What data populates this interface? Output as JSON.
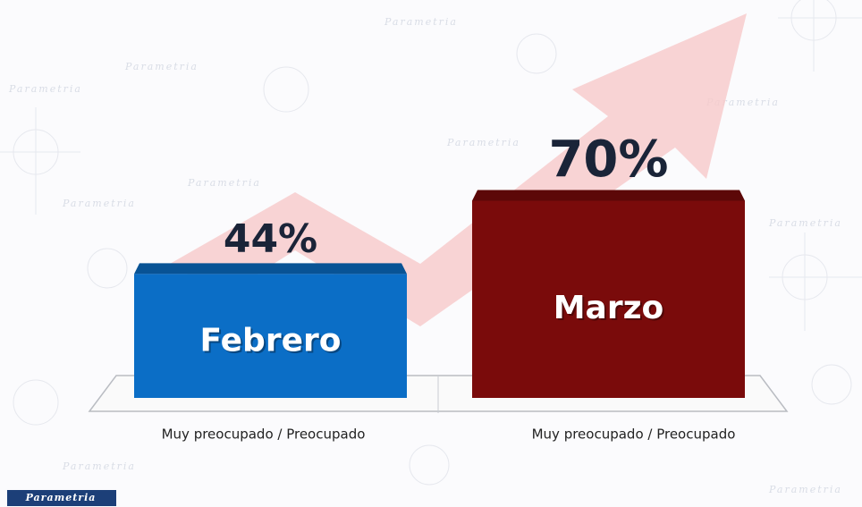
{
  "chart_data": {
    "type": "bar",
    "categories": [
      "Muy preocupado / Preocupado",
      "Muy preocupado / Preocupado"
    ],
    "bar_labels": [
      "Febrero",
      "Marzo"
    ],
    "values": [
      44,
      70
    ],
    "value_labels": [
      "44%",
      "70%"
    ],
    "colors": [
      "#0b6ec6",
      "#7a0b0b"
    ],
    "logo": "Parametria"
  }
}
